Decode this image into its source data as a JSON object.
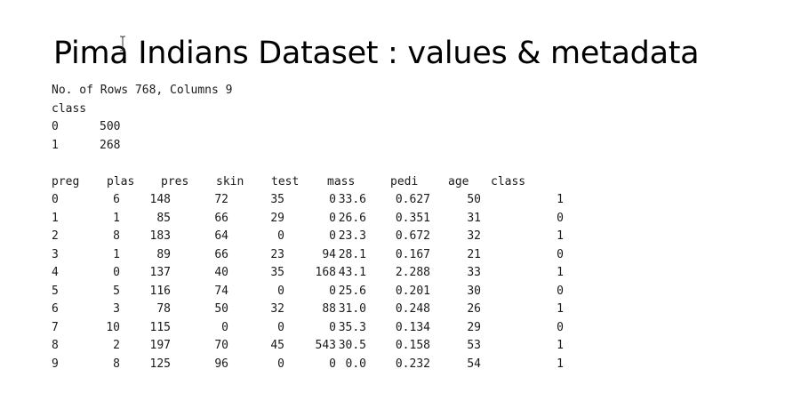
{
  "slide_title": "Pima Indians Dataset : values & metadata",
  "summary": {
    "dimensions": "No. of Rows 768, Columns 9",
    "class_header": "class",
    "class_counts": [
      {
        "label": "0",
        "count": "500"
      },
      {
        "label": "1",
        "count": "268"
      }
    ]
  },
  "table": {
    "headers": [
      "preg",
      "plas",
      "pres",
      "skin",
      "test",
      "mass",
      "pedi",
      "age",
      "class"
    ],
    "rows": [
      [
        "0",
        "6",
        "148",
        "72",
        "35",
        "0",
        "33.6",
        "0.627",
        "50",
        "1"
      ],
      [
        "1",
        "1",
        "85",
        "66",
        "29",
        "0",
        "26.6",
        "0.351",
        "31",
        "0"
      ],
      [
        "2",
        "8",
        "183",
        "64",
        "0",
        "0",
        "23.3",
        "0.672",
        "32",
        "1"
      ],
      [
        "3",
        "1",
        "89",
        "66",
        "23",
        "94",
        "28.1",
        "0.167",
        "21",
        "0"
      ],
      [
        "4",
        "0",
        "137",
        "40",
        "35",
        "168",
        "43.1",
        "2.288",
        "33",
        "1"
      ],
      [
        "5",
        "5",
        "116",
        "74",
        "0",
        "0",
        "25.6",
        "0.201",
        "30",
        "0"
      ],
      [
        "6",
        "3",
        "78",
        "50",
        "32",
        "88",
        "31.0",
        "0.248",
        "26",
        "1"
      ],
      [
        "7",
        "10",
        "115",
        "0",
        "0",
        "0",
        "35.3",
        "0.134",
        "29",
        "0"
      ],
      [
        "8",
        "2",
        "197",
        "70",
        "45",
        "543",
        "30.5",
        "0.158",
        "53",
        "1"
      ],
      [
        "9",
        "8",
        "125",
        "96",
        "0",
        "0",
        "0.0",
        "0.232",
        "54",
        "1"
      ]
    ]
  },
  "cursor_icon": "text-cursor-icon"
}
